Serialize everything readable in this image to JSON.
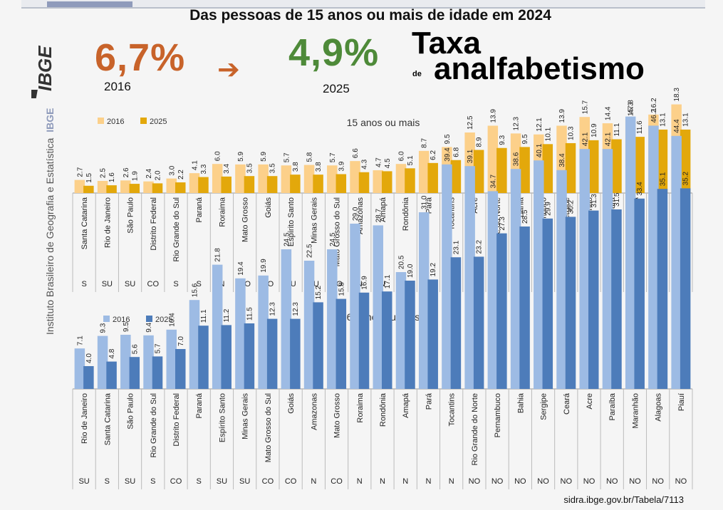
{
  "header": {
    "title": "Das pessoas de 15 anos ou mais de idade em 2024",
    "rate_2016": "6,7%",
    "year_2016": "2016",
    "arrow": "➔",
    "rate_2025": "4,9%",
    "year_2025": "2025",
    "taxa": "Taxa",
    "de": "de",
    "analfabetismo": "analfabetismo"
  },
  "logo": {
    "text": "IBGE",
    "icon": "ibge-logo-icon"
  },
  "side": {
    "org_name": "Instituto Brasileiro de Geografia e Estatística",
    "org_short": "IBGE"
  },
  "source": "sidra.ibge.gov.br/Tabela/7113",
  "colors": {
    "c1_2016": "#fcd08a",
    "c1_2025": "#e3a80b",
    "c2_2016": "#9dbbe4",
    "c2_2025": "#4d7cba",
    "orange_rate": "#c8632a",
    "green_rate": "#4e8a39"
  },
  "chart_data": [
    {
      "type": "bar",
      "title": "15 anos ou mais",
      "legend": [
        "2016",
        "2025"
      ],
      "categories": [
        "Santa Catarina",
        "Rio de Janeiro",
        "São Paulo",
        "Distrito Federal",
        "Rio Grande do Sul",
        "Paraná",
        "Roraima",
        "Mato Grosso",
        "Goiás",
        "Espírito Santo",
        "Minas Gerais",
        "Mato Grosso do Sul",
        "Amazonas",
        "Amapá",
        "Rondônia",
        "Pará",
        "Tocantins",
        "Acre",
        "Rio Grande do Norte",
        "Bahia",
        "Pernambuco",
        "Sergipe",
        "Maranhão",
        "Ceará",
        "Paraíba",
        "Piauí",
        "Alagoas"
      ],
      "regions": [
        "S",
        "SU",
        "SU",
        "CO",
        "S",
        "S",
        "N",
        "CO",
        "CO",
        "SU",
        "SU",
        "CO",
        "N",
        "N",
        "N",
        "N",
        "N",
        "NO",
        "NO",
        "NO",
        "NO",
        "NO",
        "NO",
        "NO",
        "NO",
        "NO",
        "NO"
      ],
      "series": [
        {
          "name": "2016",
          "values": [
            2.7,
            2.5,
            2.6,
            2.4,
            3.0,
            4.1,
            6.0,
            5.9,
            5.9,
            5.7,
            5.8,
            5.7,
            6.6,
            4.7,
            6.0,
            8.7,
            9.5,
            12.5,
            13.9,
            12.3,
            12.1,
            13.9,
            15.7,
            14.4,
            15.3,
            16.2,
            18.3
          ]
        },
        {
          "name": "2025",
          "values": [
            1.5,
            1.6,
            1.9,
            2.0,
            2.2,
            3.3,
            3.4,
            3.5,
            3.5,
            3.8,
            3.8,
            3.9,
            4.3,
            4.5,
            5.1,
            6.2,
            6.8,
            8.9,
            9.3,
            9.5,
            10.1,
            10.3,
            10.9,
            11.1,
            11.6,
            13.1,
            13.1
          ]
        }
      ],
      "ylim": [
        0,
        30
      ],
      "grid": false,
      "legend_position": "top-left"
    },
    {
      "type": "bar",
      "title": "60 anos ou mais",
      "legend": [
        "2016",
        "2025"
      ],
      "categories": [
        "Rio de Janeiro",
        "Santa Catarina",
        "São Paulo",
        "Rio Grande do Sul",
        "Distrito Federal",
        "Paraná",
        "Espírito Santo",
        "Minas Gerais",
        "Mato Grosso do Sul",
        "Goiás",
        "Amazonas",
        "Mato Grosso",
        "Roraima",
        "Rondônia",
        "Amapá",
        "Pará",
        "Tocantins",
        "Rio Grande do Norte",
        "Pernambuco",
        "Bahia",
        "Sergipe",
        "Ceará",
        "Acre",
        "Paraíba",
        "Maranhão",
        "Alagoas",
        "Piauí"
      ],
      "regions": [
        "SU",
        "S",
        "SU",
        "S",
        "CO",
        "S",
        "SU",
        "SU",
        "CO",
        "CO",
        "N",
        "CO",
        "N",
        "N",
        "N",
        "N",
        "N",
        "NO",
        "NO",
        "NO",
        "NO",
        "NO",
        "NO",
        "NO",
        "NO",
        "NO",
        "NO"
      ],
      "series": [
        {
          "name": "2016",
          "values": [
            7.1,
            9.3,
            9.5,
            9.4,
            10.4,
            15.6,
            21.8,
            19.4,
            19.9,
            24.5,
            22.5,
            24.5,
            29.0,
            28.7,
            20.5,
            31.0,
            39.4,
            39.1,
            34.7,
            38.6,
            40.1,
            38.4,
            42.1,
            42.1,
            47.8,
            46.2,
            44.4
          ]
        },
        {
          "name": "2025",
          "values": [
            4.0,
            4.8,
            5.6,
            5.7,
            7.0,
            11.1,
            11.2,
            11.5,
            12.3,
            12.3,
            15.2,
            15.8,
            16.9,
            17.1,
            19.0,
            19.2,
            23.1,
            23.2,
            27.3,
            28.5,
            29.9,
            30.2,
            31.3,
            31.5,
            33.4,
            35.1,
            35.2
          ]
        }
      ],
      "ylim": [
        0,
        75
      ],
      "grid": false,
      "legend_position": "top-left"
    }
  ]
}
